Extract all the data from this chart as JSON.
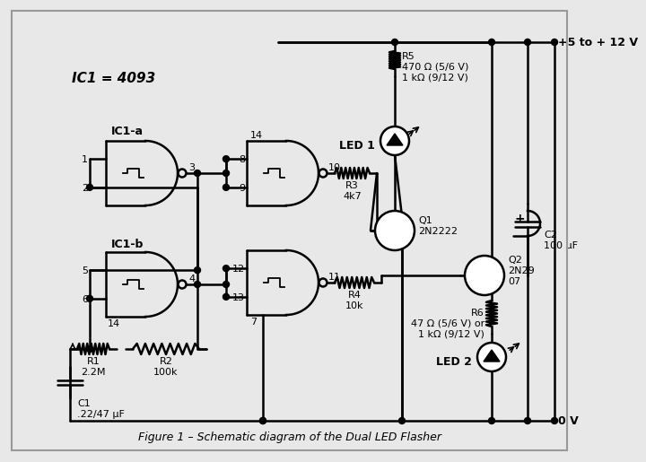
{
  "background_color": "#e8e8e8",
  "line_color": "black",
  "title": "Figure 1 – Schematic diagram of the Dual LED Flasher",
  "labels": {
    "ic1_eq": "IC1 = 4093",
    "ic1a": "IC1-a",
    "ic1b": "IC1-b",
    "r1": "R1\n2.2M",
    "r2": "R2\n100k",
    "r3": "R3\n4k7",
    "r4": "R4\n10k",
    "r5": "R5\n470 Ω (5/6 V)\n1 kΩ (9/12 V)",
    "r6": "R6\n47 Ω (5/6 V) or\n1 kΩ (9/12 V)",
    "c1": "C1\n.22/47 µF",
    "c2": "C2\n100 µF",
    "q1": "Q1\n2N2222",
    "q2": "Q2\n2N29\n07",
    "led1": "LED 1",
    "led2": "LED 2",
    "vcc": "+5 to + 12 V",
    "gnd": "0 V"
  }
}
